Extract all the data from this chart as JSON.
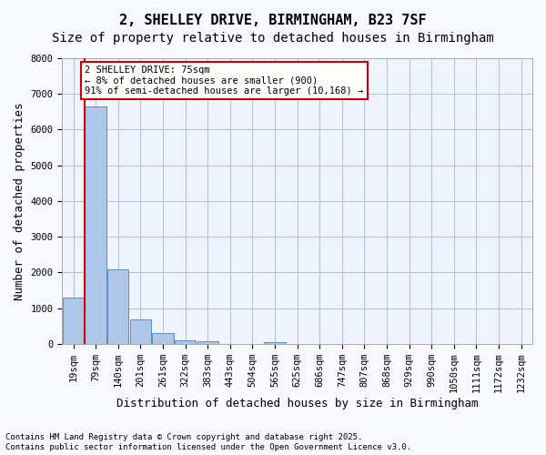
{
  "title_line1": "2, SHELLEY DRIVE, BIRMINGHAM, B23 7SF",
  "title_line2": "Size of property relative to detached houses in Birmingham",
  "xlabel": "Distribution of detached houses by size in Birmingham",
  "ylabel": "Number of detached properties",
  "categories": [
    "19sqm",
    "79sqm",
    "140sqm",
    "201sqm",
    "261sqm",
    "322sqm",
    "383sqm",
    "443sqm",
    "504sqm",
    "565sqm",
    "625sqm",
    "686sqm",
    "747sqm",
    "807sqm",
    "868sqm",
    "929sqm",
    "990sqm",
    "1050sqm",
    "1111sqm",
    "1172sqm",
    "1232sqm"
  ],
  "values": [
    1300,
    6650,
    2100,
    680,
    310,
    110,
    70,
    0,
    0,
    60,
    0,
    0,
    0,
    0,
    0,
    0,
    0,
    0,
    0,
    0,
    0
  ],
  "bar_color": "#aec6e8",
  "bar_edge_color": "#5a8fc2",
  "highlight_bar_index": 1,
  "highlight_color": "#aec6e8",
  "vline_x": 1,
  "vline_color": "#cc0000",
  "box_text_line1": "2 SHELLEY DRIVE: 75sqm",
  "box_text_line2": "← 8% of detached houses are smaller (900)",
  "box_text_line3": "91% of semi-detached houses are larger (10,168) →",
  "box_color": "#cc0000",
  "ylim": [
    0,
    8000
  ],
  "yticks": [
    0,
    1000,
    2000,
    3000,
    4000,
    5000,
    6000,
    7000,
    8000
  ],
  "footnote_line1": "Contains HM Land Registry data © Crown copyright and database right 2025.",
  "footnote_line2": "Contains public sector information licensed under the Open Government Licence v3.0.",
  "bg_color": "#f0f4ff",
  "plot_bg_color": "#f0f4ff",
  "grid_color": "#b0c0d8",
  "title_fontsize": 11,
  "subtitle_fontsize": 10,
  "tick_fontsize": 7.5,
  "label_fontsize": 9
}
